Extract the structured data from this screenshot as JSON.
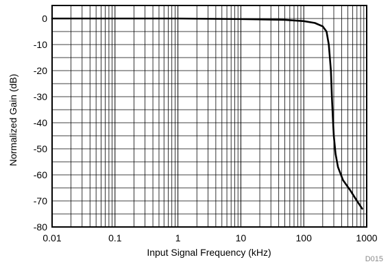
{
  "chart_data": {
    "type": "line",
    "title": "",
    "xlabel": "Input Signal Frequency (kHz)",
    "ylabel": "Normalized Gain (dB)",
    "x_scale": "log",
    "xlim": [
      0.01,
      1000
    ],
    "ylim": [
      -80,
      5
    ],
    "x_tick_values": [
      0.01,
      0.1,
      1,
      10,
      100,
      1000
    ],
    "x_tick_labels": [
      "0.01",
      "0.1",
      "1",
      "10",
      "100",
      "1000"
    ],
    "y_tick_values": [
      0,
      -10,
      -20,
      -30,
      -40,
      -50,
      -60,
      -70,
      -80
    ],
    "y_tick_labels": [
      "0",
      "-10",
      "-20",
      "-30",
      "-40",
      "-50",
      "-60",
      "-70",
      "-80"
    ],
    "grid": true,
    "legend": "none",
    "series": [
      {
        "color": "#000000",
        "points": [
          {
            "x": 0.01,
            "y": 0
          },
          {
            "x": 1,
            "y": 0
          },
          {
            "x": 10,
            "y": -0.2
          },
          {
            "x": 50,
            "y": -0.5
          },
          {
            "x": 100,
            "y": -1
          },
          {
            "x": 150,
            "y": -1.7
          },
          {
            "x": 200,
            "y": -3
          },
          {
            "x": 230,
            "y": -5
          },
          {
            "x": 250,
            "y": -10
          },
          {
            "x": 270,
            "y": -20
          },
          {
            "x": 280,
            "y": -30
          },
          {
            "x": 290,
            "y": -38
          },
          {
            "x": 300,
            "y": -45
          },
          {
            "x": 320,
            "y": -52
          },
          {
            "x": 350,
            "y": -57
          },
          {
            "x": 420,
            "y": -62
          },
          {
            "x": 550,
            "y": -66
          },
          {
            "x": 700,
            "y": -70
          },
          {
            "x": 850,
            "y": -73
          }
        ]
      }
    ]
  },
  "figure_code": "D015"
}
